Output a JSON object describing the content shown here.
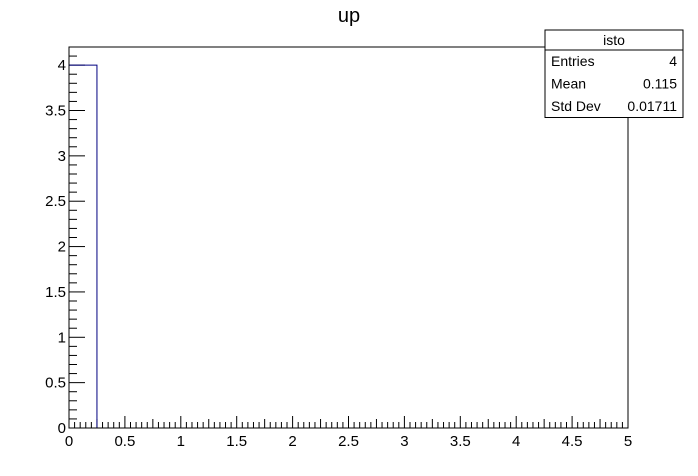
{
  "chart_data": {
    "type": "histogram",
    "title": "up",
    "xlabel": "",
    "ylabel": "",
    "xlim": [
      0,
      5
    ],
    "ylim": [
      0,
      4.2
    ],
    "bin_width": 0.25,
    "bins": [
      {
        "x_low": 0.0,
        "x_high": 0.25,
        "count": 4
      }
    ],
    "x_ticks": [
      "0",
      "0.5",
      "1",
      "1.5",
      "2",
      "2.5",
      "3",
      "3.5",
      "4",
      "4.5",
      "5"
    ],
    "x_tick_values": [
      0,
      0.5,
      1,
      1.5,
      2,
      2.5,
      3,
      3.5,
      4,
      4.5,
      5
    ],
    "y_ticks": [
      "0",
      "0.5",
      "1",
      "1.5",
      "2",
      "2.5",
      "3",
      "3.5",
      "4"
    ],
    "y_tick_values": [
      0,
      0.5,
      1,
      1.5,
      2,
      2.5,
      3,
      3.5,
      4
    ],
    "grid": false,
    "stats_box": {
      "placement": "top-right",
      "name": "isto",
      "rows": [
        {
          "label": "Entries",
          "value": "4"
        },
        {
          "label": "Mean",
          "value": "0.115"
        },
        {
          "label": "Std Dev",
          "value": "0.01711"
        }
      ]
    },
    "colors": {
      "histogram_line": "#000080",
      "axes": "#000000",
      "background": "#ffffff"
    }
  }
}
